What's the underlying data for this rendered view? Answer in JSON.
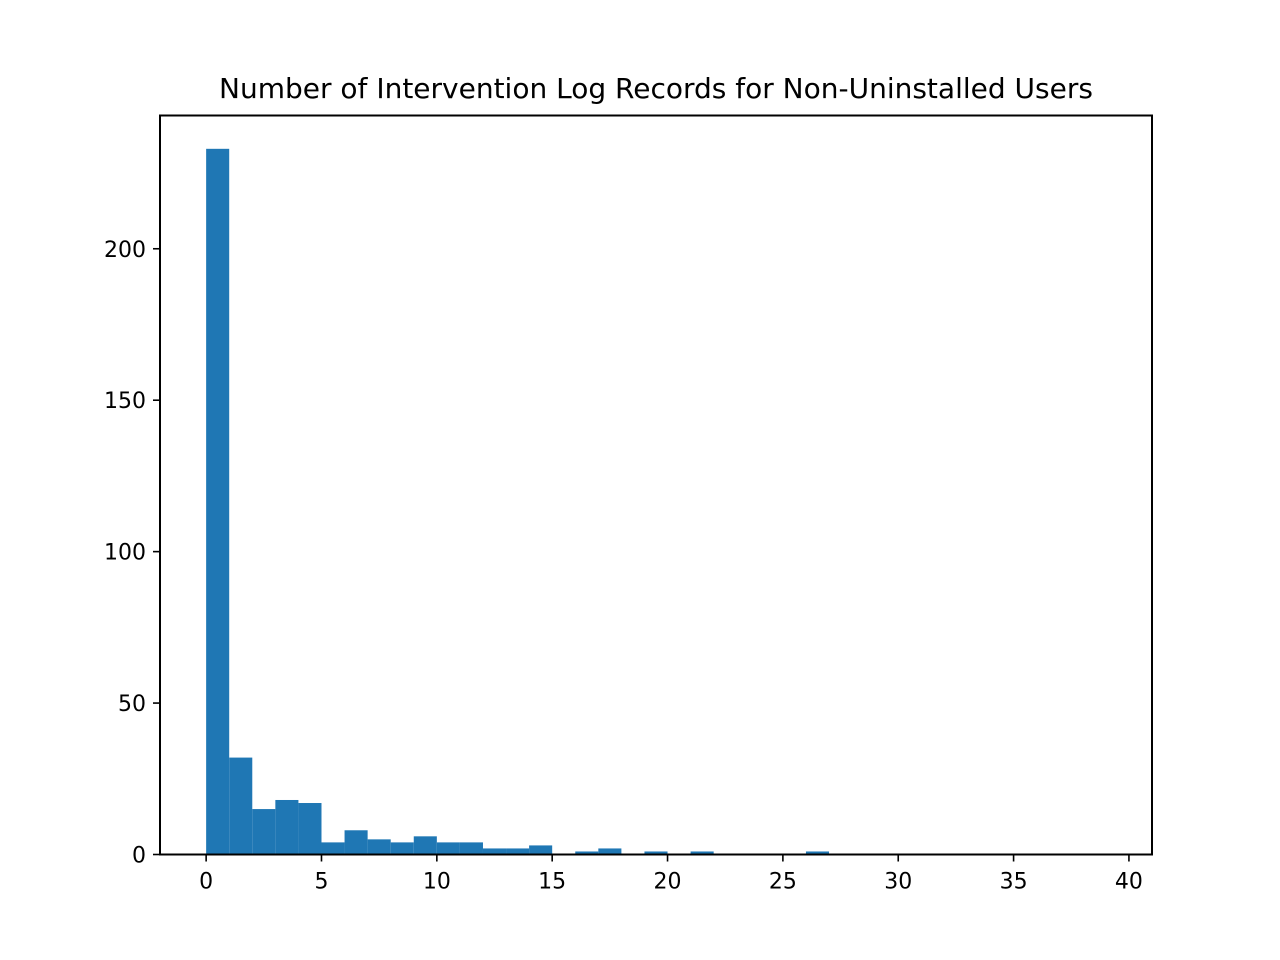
{
  "chart_data": {
    "type": "bar",
    "title": "Number of Intervention Log Records for Non-Uninstalled Users",
    "xlabel": "",
    "ylabel": "",
    "xlim": [
      -2,
      41
    ],
    "ylim": [
      0,
      244
    ],
    "bar_color": "#1f77b4",
    "bin_width": 1,
    "bins": [
      {
        "x0": 0,
        "x1": 1,
        "count": 233
      },
      {
        "x0": 1,
        "x1": 2,
        "count": 32
      },
      {
        "x0": 2,
        "x1": 3,
        "count": 15
      },
      {
        "x0": 3,
        "x1": 4,
        "count": 18
      },
      {
        "x0": 4,
        "x1": 5,
        "count": 17
      },
      {
        "x0": 5,
        "x1": 6,
        "count": 4
      },
      {
        "x0": 6,
        "x1": 7,
        "count": 8
      },
      {
        "x0": 7,
        "x1": 8,
        "count": 5
      },
      {
        "x0": 8,
        "x1": 9,
        "count": 4
      },
      {
        "x0": 9,
        "x1": 10,
        "count": 6
      },
      {
        "x0": 10,
        "x1": 11,
        "count": 4
      },
      {
        "x0": 11,
        "x1": 12,
        "count": 4
      },
      {
        "x0": 12,
        "x1": 13,
        "count": 2
      },
      {
        "x0": 13,
        "x1": 14,
        "count": 2
      },
      {
        "x0": 14,
        "x1": 15,
        "count": 3
      },
      {
        "x0": 16,
        "x1": 17,
        "count": 1
      },
      {
        "x0": 17,
        "x1": 18,
        "count": 2
      },
      {
        "x0": 19,
        "x1": 20,
        "count": 1
      },
      {
        "x0": 21,
        "x1": 22,
        "count": 1
      },
      {
        "x0": 26,
        "x1": 27,
        "count": 1
      }
    ],
    "x_ticks": [
      0,
      5,
      10,
      15,
      20,
      25,
      30,
      35,
      40
    ],
    "y_ticks": [
      0,
      50,
      100,
      150,
      200
    ]
  }
}
